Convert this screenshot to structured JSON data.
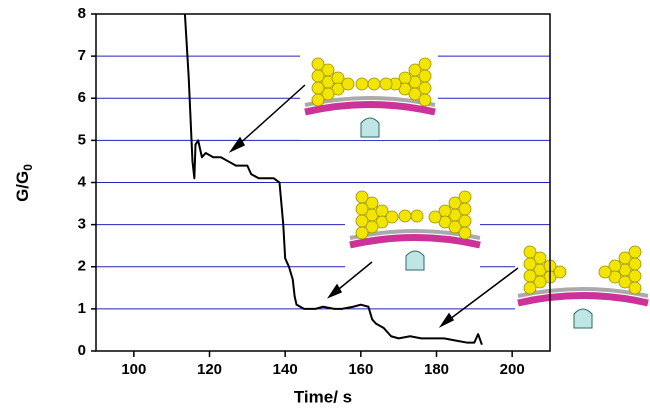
{
  "chart_data": {
    "type": "line",
    "xlabel": "Time/ s",
    "ylabel": "G/G",
    "ylabel_sub": "0",
    "xlim": [
      90,
      210
    ],
    "ylim": [
      0,
      8
    ],
    "xticks": [
      100,
      120,
      140,
      160,
      180,
      200
    ],
    "yticks": [
      0,
      1,
      2,
      3,
      4,
      5,
      6,
      7,
      8
    ],
    "grid": true,
    "grid_color": "#2222bb",
    "series": [
      {
        "color": "#000000",
        "x": [
          113.5,
          114.5,
          115,
          115.5,
          116,
          116.3,
          117,
          118,
          119,
          121,
          123,
          125,
          127,
          129,
          130,
          131,
          133,
          135,
          137,
          138.5,
          139,
          139.5,
          140,
          141,
          142,
          142.5,
          143,
          145,
          148,
          150,
          153,
          155,
          158,
          160,
          162,
          163,
          164,
          166,
          168,
          170,
          173,
          176,
          179,
          182,
          185,
          188,
          190,
          191,
          192
        ],
        "values": [
          8.0,
          6.5,
          5.5,
          4.5,
          4.1,
          4.9,
          5.0,
          4.6,
          4.7,
          4.6,
          4.6,
          4.5,
          4.4,
          4.4,
          4.4,
          4.2,
          4.1,
          4.1,
          4.1,
          4.0,
          3.5,
          3.0,
          2.2,
          2.0,
          1.7,
          1.3,
          1.1,
          1.0,
          1.0,
          1.05,
          1.0,
          1.0,
          1.05,
          1.1,
          1.05,
          0.75,
          0.65,
          0.55,
          0.35,
          0.3,
          0.35,
          0.3,
          0.3,
          0.3,
          0.25,
          0.2,
          0.2,
          0.4,
          0.15
        ]
      }
    ]
  }
}
